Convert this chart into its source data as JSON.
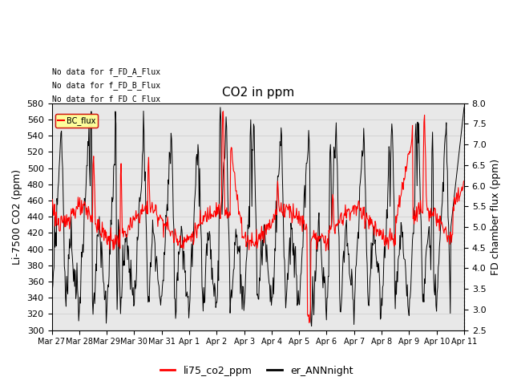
{
  "title": "CO2 in ppm",
  "ylabel_left": "Li-7500 CO2 (ppm)",
  "ylabel_right": "FD chamber flux (ppm)",
  "ylim_left": [
    300,
    580
  ],
  "ylim_right": [
    2.5,
    8.0
  ],
  "yticks_left": [
    300,
    320,
    340,
    360,
    380,
    400,
    420,
    440,
    460,
    480,
    500,
    520,
    540,
    560,
    580
  ],
  "yticks_right": [
    2.5,
    3.0,
    3.5,
    4.0,
    4.5,
    5.0,
    5.5,
    6.0,
    6.5,
    7.0,
    7.5,
    8.0
  ],
  "x_labels": [
    "Mar 27",
    "Mar 28",
    "Mar 29",
    "Mar 30",
    "Mar 31",
    "Apr 1",
    "Apr 2",
    "Apr 3",
    "Apr 4",
    "Apr 5",
    "Apr 6",
    "Apr 7",
    "Apr 8",
    "Apr 9",
    "Apr 10",
    "Apr 11"
  ],
  "annotations": [
    "No data for f_FD_A_Flux",
    "No data for f_FD_B_Flux",
    "No data for f_FD_C_Flux"
  ],
  "legend_label_red": "li75_co2_ppm",
  "legend_label_black": "er_ANNnight",
  "legend_box_label": "BC_flux",
  "line_color_red": "#ff0000",
  "line_color_black": "#000000",
  "background_color": "#ffffff",
  "grid_color": "#d0d0d0",
  "title_fontsize": 11,
  "axis_label_fontsize": 9,
  "tick_fontsize": 8
}
